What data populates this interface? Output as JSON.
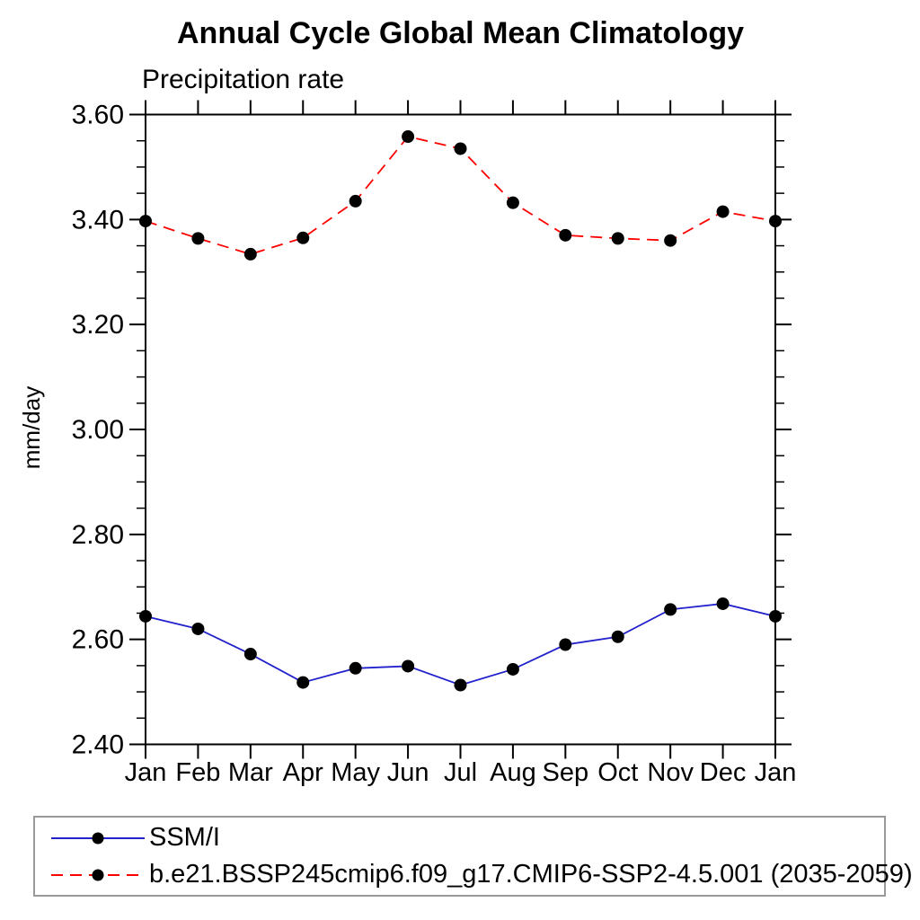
{
  "chart_data": {
    "type": "line",
    "title": "Annual Cycle Global Mean Climatology",
    "subtitle": "Precipitation rate",
    "xlabel": "",
    "ylabel": "mm/day",
    "x_categories": [
      "Jan",
      "Feb",
      "Mar",
      "Apr",
      "May",
      "Jun",
      "Jul",
      "Aug",
      "Sep",
      "Oct",
      "Nov",
      "Dec",
      "Jan"
    ],
    "ylim": [
      2.4,
      3.6
    ],
    "y_major_step": 0.2,
    "y_minor_step": 0.05,
    "y_tick_labels": [
      "2.40",
      "2.60",
      "2.80",
      "3.00",
      "3.20",
      "3.40",
      "3.60"
    ],
    "grid": "off",
    "legend_position": "boxed legend below plot, left-aligned",
    "axis_style": "ticks outward on all four sides, no gridlines",
    "series": [
      {
        "name": "SSM/I",
        "color": "#2222cc",
        "line_style": "solid",
        "marker": "filled-black-circle",
        "marker_color": "#000000",
        "values": [
          2.644,
          2.62,
          2.572,
          2.518,
          2.545,
          2.549,
          2.513,
          2.543,
          2.59,
          2.605,
          2.657,
          2.668,
          2.644
        ]
      },
      {
        "name": "b.e21.BSSP245cmip6.f09_g17.CMIP6-SSP2-4.5.001 (2035-2059)",
        "color": "#ff0000",
        "line_style": "dashed",
        "marker": "filled-black-circle",
        "marker_color": "#000000",
        "values": [
          3.397,
          3.364,
          3.334,
          3.365,
          3.435,
          3.558,
          3.535,
          3.432,
          3.37,
          3.364,
          3.36,
          3.415,
          3.397
        ]
      }
    ]
  }
}
